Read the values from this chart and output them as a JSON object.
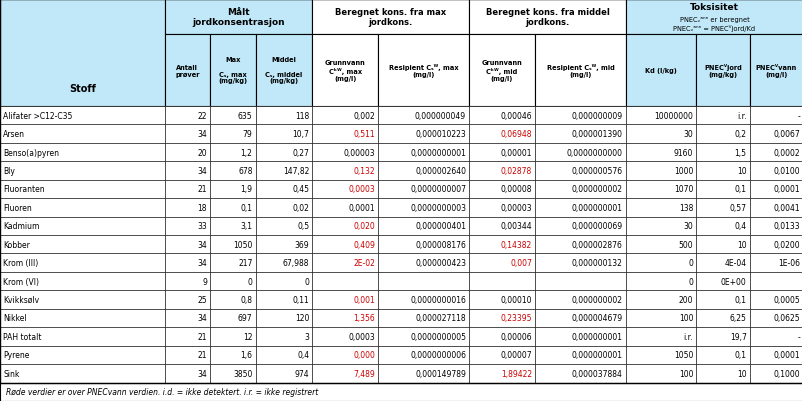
{
  "rows": [
    {
      "stoff": "Alifater >C12-C35",
      "antall": "22",
      "max": "635",
      "middel": "118",
      "gw_max": "0,002",
      "res_max": "0,000000049",
      "gw_mid": "0,00046",
      "res_mid": "0,000000009",
      "kd": "10000000",
      "pnecj": "i.r.",
      "pnecv": "-",
      "gw_max_red": false,
      "gw_mid_red": false
    },
    {
      "stoff": "Arsen",
      "antall": "34",
      "max": "79",
      "middel": "10,7",
      "gw_max": "0,511",
      "res_max": "0,000010223",
      "gw_mid": "0,06948",
      "res_mid": "0,000001390",
      "kd": "30",
      "pnecj": "0,2",
      "pnecv": "0,0067",
      "gw_max_red": true,
      "gw_mid_red": true
    },
    {
      "stoff": "Benso(a)pyren",
      "antall": "20",
      "max": "1,2",
      "middel": "0,27",
      "gw_max": "0,00003",
      "res_max": "0,0000000001",
      "gw_mid": "0,00001",
      "res_mid": "0,0000000000",
      "kd": "9160",
      "pnecj": "1,5",
      "pnecv": "0,0002",
      "gw_max_red": false,
      "gw_mid_red": false
    },
    {
      "stoff": "Bly",
      "antall": "34",
      "max": "678",
      "middel": "147,82",
      "gw_max": "0,132",
      "res_max": "0,000002640",
      "gw_mid": "0,02878",
      "res_mid": "0,000000576",
      "kd": "1000",
      "pnecj": "10",
      "pnecv": "0,0100",
      "gw_max_red": true,
      "gw_mid_red": true
    },
    {
      "stoff": "Fluoranten",
      "antall": "21",
      "max": "1,9",
      "middel": "0,45",
      "gw_max": "0,0003",
      "res_max": "0,0000000007",
      "gw_mid": "0,00008",
      "res_mid": "0,000000002",
      "kd": "1070",
      "pnecj": "0,1",
      "pnecv": "0,0001",
      "gw_max_red": true,
      "gw_mid_red": false
    },
    {
      "stoff": "Fluoren",
      "antall": "18",
      "max": "0,1",
      "middel": "0,02",
      "gw_max": "0,0001",
      "res_max": "0,0000000003",
      "gw_mid": "0,00003",
      "res_mid": "0,000000001",
      "kd": "138",
      "pnecj": "0,57",
      "pnecv": "0,0041",
      "gw_max_red": false,
      "gw_mid_red": false
    },
    {
      "stoff": "Kadmium",
      "antall": "33",
      "max": "3,1",
      "middel": "0,5",
      "gw_max": "0,020",
      "res_max": "0,000000401",
      "gw_mid": "0,00344",
      "res_mid": "0,000000069",
      "kd": "30",
      "pnecj": "0,4",
      "pnecv": "0,0133",
      "gw_max_red": true,
      "gw_mid_red": false
    },
    {
      "stoff": "Kobber",
      "antall": "34",
      "max": "1050",
      "middel": "369",
      "gw_max": "0,409",
      "res_max": "0,000008176",
      "gw_mid": "0,14382",
      "res_mid": "0,000002876",
      "kd": "500",
      "pnecj": "10",
      "pnecv": "0,0200",
      "gw_max_red": true,
      "gw_mid_red": true
    },
    {
      "stoff": "Krom (III)",
      "antall": "34",
      "max": "217",
      "middel": "67,988",
      "gw_max": "2E-02",
      "res_max": "0,000000423",
      "gw_mid": "0,007",
      "res_mid": "0,000000132",
      "kd": "0",
      "pnecj": "4E-04",
      "pnecv": "1E-06",
      "gw_max_red": true,
      "gw_mid_red": true
    },
    {
      "stoff": "Krom (VI)",
      "antall": "9",
      "max": "0",
      "middel": "0",
      "gw_max": "",
      "res_max": "",
      "gw_mid": "",
      "res_mid": "",
      "kd": "0",
      "pnecj": "0E+00",
      "pnecv": "",
      "gw_max_red": false,
      "gw_mid_red": false
    },
    {
      "stoff": "Kvikksølv",
      "antall": "25",
      "max": "0,8",
      "middel": "0,11",
      "gw_max": "0,001",
      "res_max": "0,0000000016",
      "gw_mid": "0,00010",
      "res_mid": "0,000000002",
      "kd": "200",
      "pnecj": "0,1",
      "pnecv": "0,0005",
      "gw_max_red": true,
      "gw_mid_red": false
    },
    {
      "stoff": "Nikkel",
      "antall": "34",
      "max": "697",
      "middel": "120",
      "gw_max": "1,356",
      "res_max": "0,000027118",
      "gw_mid": "0,23395",
      "res_mid": "0,000004679",
      "kd": "100",
      "pnecj": "6,25",
      "pnecv": "0,0625",
      "gw_max_red": true,
      "gw_mid_red": true
    },
    {
      "stoff": "PAH totalt",
      "antall": "21",
      "max": "12",
      "middel": "3",
      "gw_max": "0,0003",
      "res_max": "0,0000000005",
      "gw_mid": "0,00006",
      "res_mid": "0,000000001",
      "kd": "i.r.",
      "pnecj": "19,7",
      "pnecv": "-",
      "gw_max_red": false,
      "gw_mid_red": false
    },
    {
      "stoff": "Pyrene",
      "antall": "21",
      "max": "1,6",
      "middel": "0,4",
      "gw_max": "0,000",
      "res_max": "0,0000000006",
      "gw_mid": "0,00007",
      "res_mid": "0,000000001",
      "kd": "1050",
      "pnecj": "0,1",
      "pnecv": "0,0001",
      "gw_max_red": true,
      "gw_mid_red": false
    },
    {
      "stoff": "Sink",
      "antall": "34",
      "max": "3850",
      "middel": "974",
      "gw_max": "7,489",
      "res_max": "0,000149789",
      "gw_mid": "1,89422",
      "res_mid": "0,000037884",
      "kd": "100",
      "pnecj": "10",
      "pnecv": "0,1000",
      "gw_max_red": true,
      "gw_mid_red": true
    }
  ],
  "footnote": "Røde verdier er over PNECvann verdien. i.d. = ikke detektert. i.r. = ikke registrert",
  "hdr_color": "#c0e8f8",
  "white": "#ffffff",
  "red_color": "#cc0000",
  "black_color": "#000000"
}
